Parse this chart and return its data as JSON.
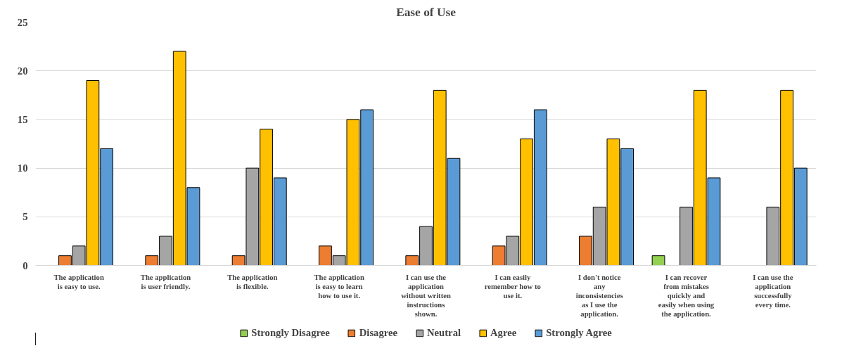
{
  "chart_data": {
    "type": "bar",
    "title": "Ease of Use",
    "categories": [
      "The application is easy to use.",
      "The application is user friendly.",
      "The application is flexible.",
      "The application is easy to learn how to use it.",
      "I can use the application without written instructions shown.",
      "I can easily remember how to use it.",
      "I don't notice any inconsistencies as I use the application.",
      "I can recover from mistakes quickly and easily when using the application.",
      "I can use the application successfully every time."
    ],
    "series": [
      {
        "name": "Strongly Disagree",
        "color": "#92d050",
        "values": [
          0,
          0,
          0,
          0,
          0,
          0,
          0,
          1,
          0
        ]
      },
      {
        "name": "Disagree",
        "color": "#ed7d31",
        "values": [
          1,
          1,
          1,
          2,
          1,
          2,
          3,
          0,
          0
        ]
      },
      {
        "name": "Neutral",
        "color": "#a5a5a5",
        "values": [
          2,
          3,
          10,
          1,
          4,
          3,
          6,
          6,
          6
        ]
      },
      {
        "name": "Agree",
        "color": "#ffc000",
        "values": [
          19,
          22,
          14,
          15,
          18,
          13,
          13,
          18,
          18
        ]
      },
      {
        "name": "Strongly Agree",
        "color": "#5b9bd5",
        "values": [
          12,
          8,
          9,
          16,
          11,
          16,
          12,
          9,
          10
        ]
      }
    ],
    "ylim": [
      0,
      25
    ],
    "yticks": [
      0,
      5,
      10,
      15,
      20,
      25
    ],
    "grid": "y",
    "legend": "bottom"
  }
}
